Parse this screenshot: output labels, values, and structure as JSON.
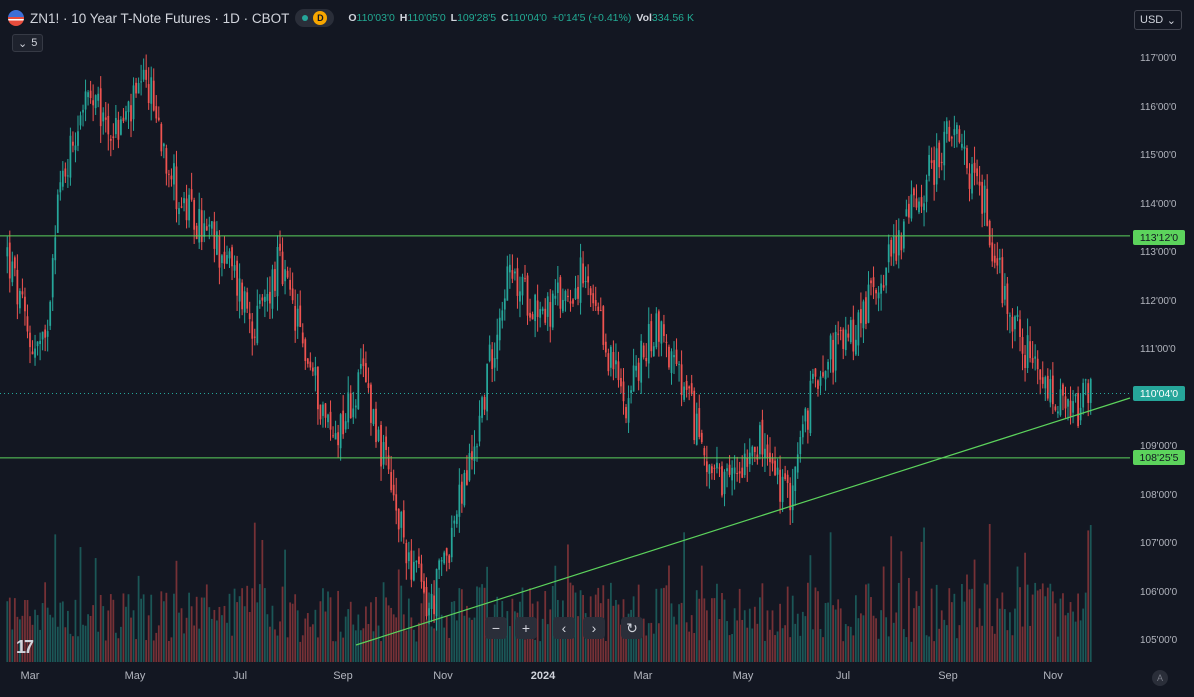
{
  "legend": {
    "symbol_title": "ZN1! · 10 Year T-Note Futures · 1D · CBOT",
    "interval_badge": "D",
    "ohlc": [
      {
        "key": "O",
        "value": "110'03'0"
      },
      {
        "key": "H",
        "value": "110'05'0"
      },
      {
        "key": "L",
        "value": "109'28'5"
      },
      {
        "key": "C",
        "value": "110'04'0"
      },
      {
        "key": "",
        "value": "+0'14'5 (+0.41%)"
      },
      {
        "key": "Vol",
        "value": "334.56 K"
      }
    ],
    "collapse_label": "5"
  },
  "currency": "USD",
  "price_tags": {
    "resistance": "113'12'0",
    "last": "110'04'0",
    "support": "108'25'5"
  },
  "y_axis_labels": [
    "117'00'0",
    "116'00'0",
    "115'00'0",
    "114'00'0",
    "113'00'0",
    "112'00'0",
    "111'00'0",
    "110'00'0",
    "109'00'0",
    "108'00'0",
    "107'00'0",
    "106'00'0",
    "105'00'0"
  ],
  "x_axis_labels": [
    {
      "label": "Mar",
      "bold": false
    },
    {
      "label": "May",
      "bold": false
    },
    {
      "label": "Jul",
      "bold": false
    },
    {
      "label": "Sep",
      "bold": false
    },
    {
      "label": "Nov",
      "bold": false
    },
    {
      "label": "2024",
      "bold": true
    },
    {
      "label": "Mar",
      "bold": false
    },
    {
      "label": "May",
      "bold": false
    },
    {
      "label": "Jul",
      "bold": false
    },
    {
      "label": "Sep",
      "bold": false
    },
    {
      "label": "Nov",
      "bold": false
    }
  ],
  "colors": {
    "up": "#26a69a",
    "down": "#ef5350",
    "line": "#5cd35c",
    "background": "#131722"
  },
  "logo_text": "17",
  "auto_badge": "A",
  "chart_data": {
    "type": "candlestick",
    "ylim": [
      104.7,
      117.4
    ],
    "horizontal_levels": [
      113.375,
      108.797
    ],
    "last_price": 110.125,
    "price_path_anchors": [
      {
        "t": 0.0,
        "v": 113.0
      },
      {
        "t": 0.02,
        "v": 111.2
      },
      {
        "t": 0.035,
        "v": 111.0
      },
      {
        "t": 0.045,
        "v": 114.0
      },
      {
        "t": 0.07,
        "v": 116.2
      },
      {
        "t": 0.1,
        "v": 115.5
      },
      {
        "t": 0.13,
        "v": 116.5
      },
      {
        "t": 0.16,
        "v": 114.0
      },
      {
        "t": 0.2,
        "v": 113.0
      },
      {
        "t": 0.23,
        "v": 111.5
      },
      {
        "t": 0.25,
        "v": 112.8
      },
      {
        "t": 0.3,
        "v": 109.2
      },
      {
        "t": 0.33,
        "v": 110.5
      },
      {
        "t": 0.36,
        "v": 107.5
      },
      {
        "t": 0.39,
        "v": 105.6
      },
      {
        "t": 0.43,
        "v": 108.9
      },
      {
        "t": 0.46,
        "v": 112.5
      },
      {
        "t": 0.5,
        "v": 111.8
      },
      {
        "t": 0.53,
        "v": 112.5
      },
      {
        "t": 0.57,
        "v": 110.0
      },
      {
        "t": 0.6,
        "v": 111.6
      },
      {
        "t": 0.63,
        "v": 109.8
      },
      {
        "t": 0.66,
        "v": 108.0
      },
      {
        "t": 0.69,
        "v": 109.3
      },
      {
        "t": 0.72,
        "v": 107.9
      },
      {
        "t": 0.75,
        "v": 110.8
      },
      {
        "t": 0.78,
        "v": 111.3
      },
      {
        "t": 0.8,
        "v": 112.3
      },
      {
        "t": 0.83,
        "v": 113.7
      },
      {
        "t": 0.87,
        "v": 115.5
      },
      {
        "t": 0.9,
        "v": 114.2
      },
      {
        "t": 0.92,
        "v": 112.2
      },
      {
        "t": 0.95,
        "v": 110.4
      },
      {
        "t": 0.98,
        "v": 109.6
      },
      {
        "t": 1.0,
        "v": 110.1
      }
    ]
  }
}
